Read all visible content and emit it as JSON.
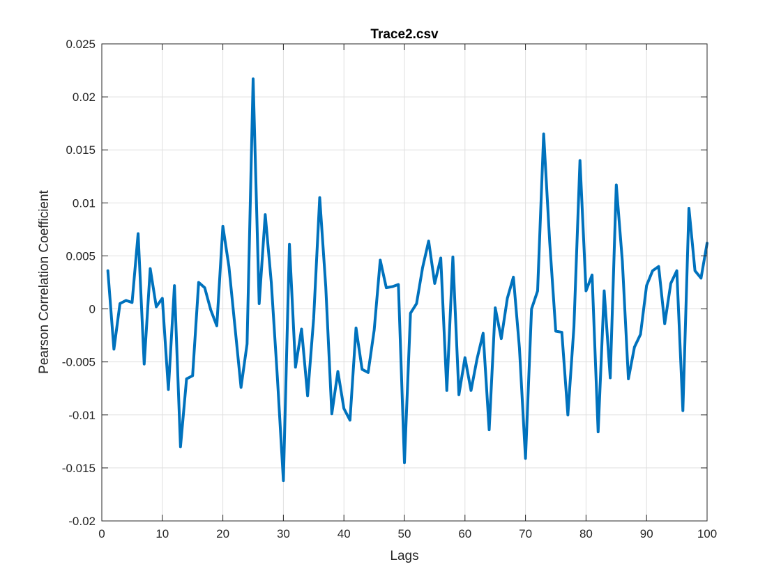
{
  "chart_data": {
    "type": "line",
    "title": "Trace2.csv",
    "xlabel": "Lags",
    "ylabel": "Pearson Correlation Coefficient",
    "xlim": [
      0,
      100
    ],
    "ylim": [
      -0.02,
      0.025
    ],
    "xticks": [
      0,
      10,
      20,
      30,
      40,
      50,
      60,
      70,
      80,
      90,
      100
    ],
    "xtick_labels": [
      "0",
      "10",
      "20",
      "30",
      "40",
      "50",
      "60",
      "70",
      "80",
      "90",
      "100"
    ],
    "yticks": [
      -0.02,
      -0.015,
      -0.01,
      -0.005,
      0,
      0.005,
      0.01,
      0.015,
      0.02,
      0.025
    ],
    "ytick_labels": [
      "-0.02",
      "-0.015",
      "-0.01",
      "-0.005",
      "0",
      "0.005",
      "0.01",
      "0.015",
      "0.02",
      "0.025"
    ],
    "grid": true,
    "series": [
      {
        "color": "#0072BD",
        "x": [
          1,
          2,
          3,
          4,
          5,
          6,
          7,
          8,
          9,
          10,
          11,
          12,
          13,
          14,
          15,
          16,
          17,
          18,
          19,
          20,
          21,
          22,
          23,
          24,
          25,
          26,
          27,
          28,
          29,
          30,
          31,
          32,
          33,
          34,
          35,
          36,
          37,
          38,
          39,
          40,
          41,
          42,
          43,
          44,
          45,
          46,
          47,
          48,
          49,
          50,
          51,
          52,
          53,
          54,
          55,
          56,
          57,
          58,
          59,
          60,
          61,
          62,
          63,
          64,
          65,
          66,
          67,
          68,
          69,
          70,
          71,
          72,
          73,
          74,
          75,
          76,
          77,
          78,
          79,
          80,
          81,
          82,
          83,
          84,
          85,
          86,
          87,
          88,
          89,
          90,
          91,
          92,
          93,
          94,
          95,
          96,
          97,
          98,
          99,
          100
        ],
        "y": [
          0.0036,
          -0.0038,
          0.0005,
          0.0008,
          0.0006,
          0.0071,
          -0.0052,
          0.0038,
          0.0002,
          0.001,
          -0.0076,
          0.0022,
          -0.013,
          -0.0066,
          -0.0063,
          0.0025,
          0.002,
          -0.0001,
          -0.0016,
          0.0078,
          0.004,
          -0.0017,
          -0.0074,
          -0.0033,
          0.0217,
          0.0005,
          0.0089,
          0.0025,
          -0.0064,
          -0.0162,
          0.0061,
          -0.0055,
          -0.0019,
          -0.0082,
          -0.0009,
          0.0105,
          0.0021,
          -0.0099,
          -0.0059,
          -0.0094,
          -0.0105,
          -0.0018,
          -0.0057,
          -0.006,
          -0.002,
          0.0046,
          0.002,
          0.0021,
          0.0023,
          -0.0145,
          -0.0004,
          0.0005,
          0.0039,
          0.0064,
          0.0024,
          0.0048,
          -0.0077,
          0.0049,
          -0.0081,
          -0.0046,
          -0.0077,
          -0.0047,
          -0.0023,
          -0.0114,
          0.0001,
          -0.0028,
          0.001,
          0.003,
          -0.0037,
          -0.0141,
          0.0,
          0.0017,
          0.0165,
          0.0063,
          -0.0021,
          -0.0022,
          -0.01,
          -0.0017,
          0.014,
          0.0017,
          0.0032,
          -0.0116,
          0.0017,
          -0.0065,
          0.0117,
          0.0045,
          -0.0066,
          -0.0036,
          -0.0024,
          0.0022,
          0.0036,
          0.004,
          -0.0014,
          0.0024,
          0.0036,
          -0.0096,
          0.0095,
          0.0036,
          0.0029,
          0.0062
        ]
      }
    ]
  }
}
